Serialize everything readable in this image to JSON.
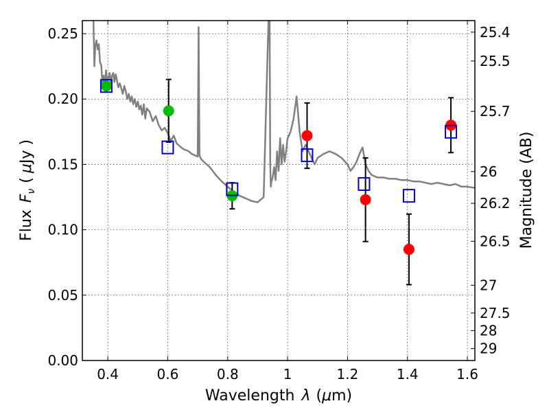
{
  "chart_data": {
    "type": "scatter",
    "title": "",
    "xlabel_prefix": "Wavelength",
    "xlabel_symbol": "λ",
    "xlabel_unit_open": "(",
    "xlabel_unit_mu": "μ",
    "xlabel_unit_rest": "m)",
    "ylabel_prefix": "Flux",
    "ylabel_symbol": "F",
    "ylabel_subscript": "ν",
    "ylabel_unit_open": "(",
    "ylabel_unit_mu": "μ",
    "ylabel_unit_rest": "Jy )",
    "y2label": "Magnitude (AB)",
    "xlim": [
      0.315,
      1.625
    ],
    "ylim": [
      0.0,
      0.26
    ],
    "grid": true,
    "x_ticks": [
      0.4,
      0.6,
      0.8,
      1.0,
      1.2,
      1.4,
      1.6
    ],
    "x_tick_labels": [
      "0.4",
      "0.6",
      "0.8",
      "1",
      "1.2",
      "1.4",
      "1.6"
    ],
    "y_ticks": [
      0.0,
      0.05,
      0.1,
      0.15,
      0.2,
      0.25
    ],
    "y_tick_labels": [
      "0.00",
      "0.05",
      "0.10",
      "0.15",
      "0.20",
      "0.25"
    ],
    "mag_ticks": [
      "25.4",
      "25.5",
      "25.7",
      "26",
      "26.2",
      "26.5",
      "27",
      "27.5",
      "28",
      "29"
    ],
    "colors": {
      "model": "#808080",
      "model_box": "#0000cc",
      "obs_red": "#ff0000",
      "obs_green": "#00bb00",
      "errorbar": "#000000"
    },
    "series": [
      {
        "name": "model spectrum",
        "kind": "line",
        "x": [
          0.352,
          0.355,
          0.358,
          0.362,
          0.366,
          0.37,
          0.374,
          0.378,
          0.382,
          0.386,
          0.39,
          0.394,
          0.398,
          0.402,
          0.406,
          0.41,
          0.414,
          0.418,
          0.422,
          0.426,
          0.43,
          0.435,
          0.44,
          0.445,
          0.45,
          0.455,
          0.46,
          0.465,
          0.47,
          0.475,
          0.48,
          0.485,
          0.49,
          0.495,
          0.5,
          0.505,
          0.51,
          0.515,
          0.52,
          0.525,
          0.53,
          0.54,
          0.55,
          0.56,
          0.57,
          0.58,
          0.59,
          0.6,
          0.61,
          0.62,
          0.63,
          0.64,
          0.65,
          0.66,
          0.67,
          0.68,
          0.69,
          0.7,
          0.703,
          0.706,
          0.709,
          0.712,
          0.72,
          0.74,
          0.76,
          0.78,
          0.8,
          0.82,
          0.84,
          0.86,
          0.88,
          0.9,
          0.92,
          0.936,
          0.938,
          0.94,
          0.942,
          0.944,
          0.946,
          0.95,
          0.955,
          0.96,
          0.965,
          0.97,
          0.975,
          0.98,
          0.985,
          0.99,
          0.995,
          1.0,
          1.01,
          1.02,
          1.03,
          1.04,
          1.05,
          1.06,
          1.07,
          1.08,
          1.09,
          1.1,
          1.12,
          1.14,
          1.16,
          1.18,
          1.2,
          1.21,
          1.22,
          1.23,
          1.24,
          1.25,
          1.26,
          1.27,
          1.28,
          1.3,
          1.32,
          1.34,
          1.36,
          1.38,
          1.4,
          1.42,
          1.44,
          1.46,
          1.48,
          1.5,
          1.52,
          1.54,
          1.56,
          1.58,
          1.6,
          1.625
        ],
        "y": [
          0.26,
          0.225,
          0.24,
          0.245,
          0.238,
          0.242,
          0.228,
          0.226,
          0.212,
          0.218,
          0.21,
          0.222,
          0.212,
          0.216,
          0.22,
          0.212,
          0.218,
          0.22,
          0.213,
          0.219,
          0.215,
          0.209,
          0.212,
          0.208,
          0.204,
          0.21,
          0.206,
          0.2,
          0.204,
          0.198,
          0.202,
          0.196,
          0.2,
          0.194,
          0.198,
          0.192,
          0.195,
          0.188,
          0.196,
          0.185,
          0.193,
          0.19,
          0.183,
          0.187,
          0.18,
          0.176,
          0.178,
          0.174,
          0.168,
          0.172,
          0.166,
          0.164,
          0.162,
          0.161,
          0.16,
          0.158,
          0.157,
          0.156,
          0.255,
          0.157,
          0.155,
          0.154,
          0.152,
          0.148,
          0.142,
          0.137,
          0.133,
          0.129,
          0.126,
          0.124,
          0.122,
          0.121,
          0.125,
          0.26,
          0.245,
          0.26,
          0.15,
          0.133,
          0.137,
          0.14,
          0.148,
          0.138,
          0.16,
          0.145,
          0.17,
          0.15,
          0.165,
          0.152,
          0.16,
          0.17,
          0.175,
          0.185,
          0.202,
          0.175,
          0.16,
          0.165,
          0.16,
          0.155,
          0.15,
          0.155,
          0.158,
          0.16,
          0.158,
          0.155,
          0.15,
          0.145,
          0.148,
          0.152,
          0.158,
          0.163,
          0.15,
          0.145,
          0.142,
          0.14,
          0.14,
          0.139,
          0.139,
          0.138,
          0.138,
          0.137,
          0.137,
          0.136,
          0.135,
          0.136,
          0.135,
          0.134,
          0.135,
          0.133,
          0.133,
          0.132
        ]
      },
      {
        "name": "model band fluxes",
        "kind": "open-square",
        "color": "#0000cc",
        "x": [
          0.395,
          0.6,
          0.815,
          1.065,
          1.255,
          1.405,
          1.545
        ],
        "y": [
          0.21,
          0.163,
          0.131,
          0.157,
          0.135,
          0.126,
          0.175
        ]
      },
      {
        "name": "observed (green)",
        "kind": "filled-circle",
        "color": "#00bb00",
        "x": [
          0.395,
          0.603,
          0.815
        ],
        "y": [
          0.21,
          0.191,
          0.126
        ],
        "yerr": [
          0.0,
          0.024,
          0.01
        ]
      },
      {
        "name": "observed (red)",
        "kind": "filled-circle",
        "color": "#ff0000",
        "x": [
          1.065,
          1.26,
          1.405,
          1.545
        ],
        "y": [
          0.172,
          0.123,
          0.085,
          0.18
        ],
        "yerr": [
          0.025,
          0.032,
          0.027,
          0.021
        ]
      }
    ]
  }
}
